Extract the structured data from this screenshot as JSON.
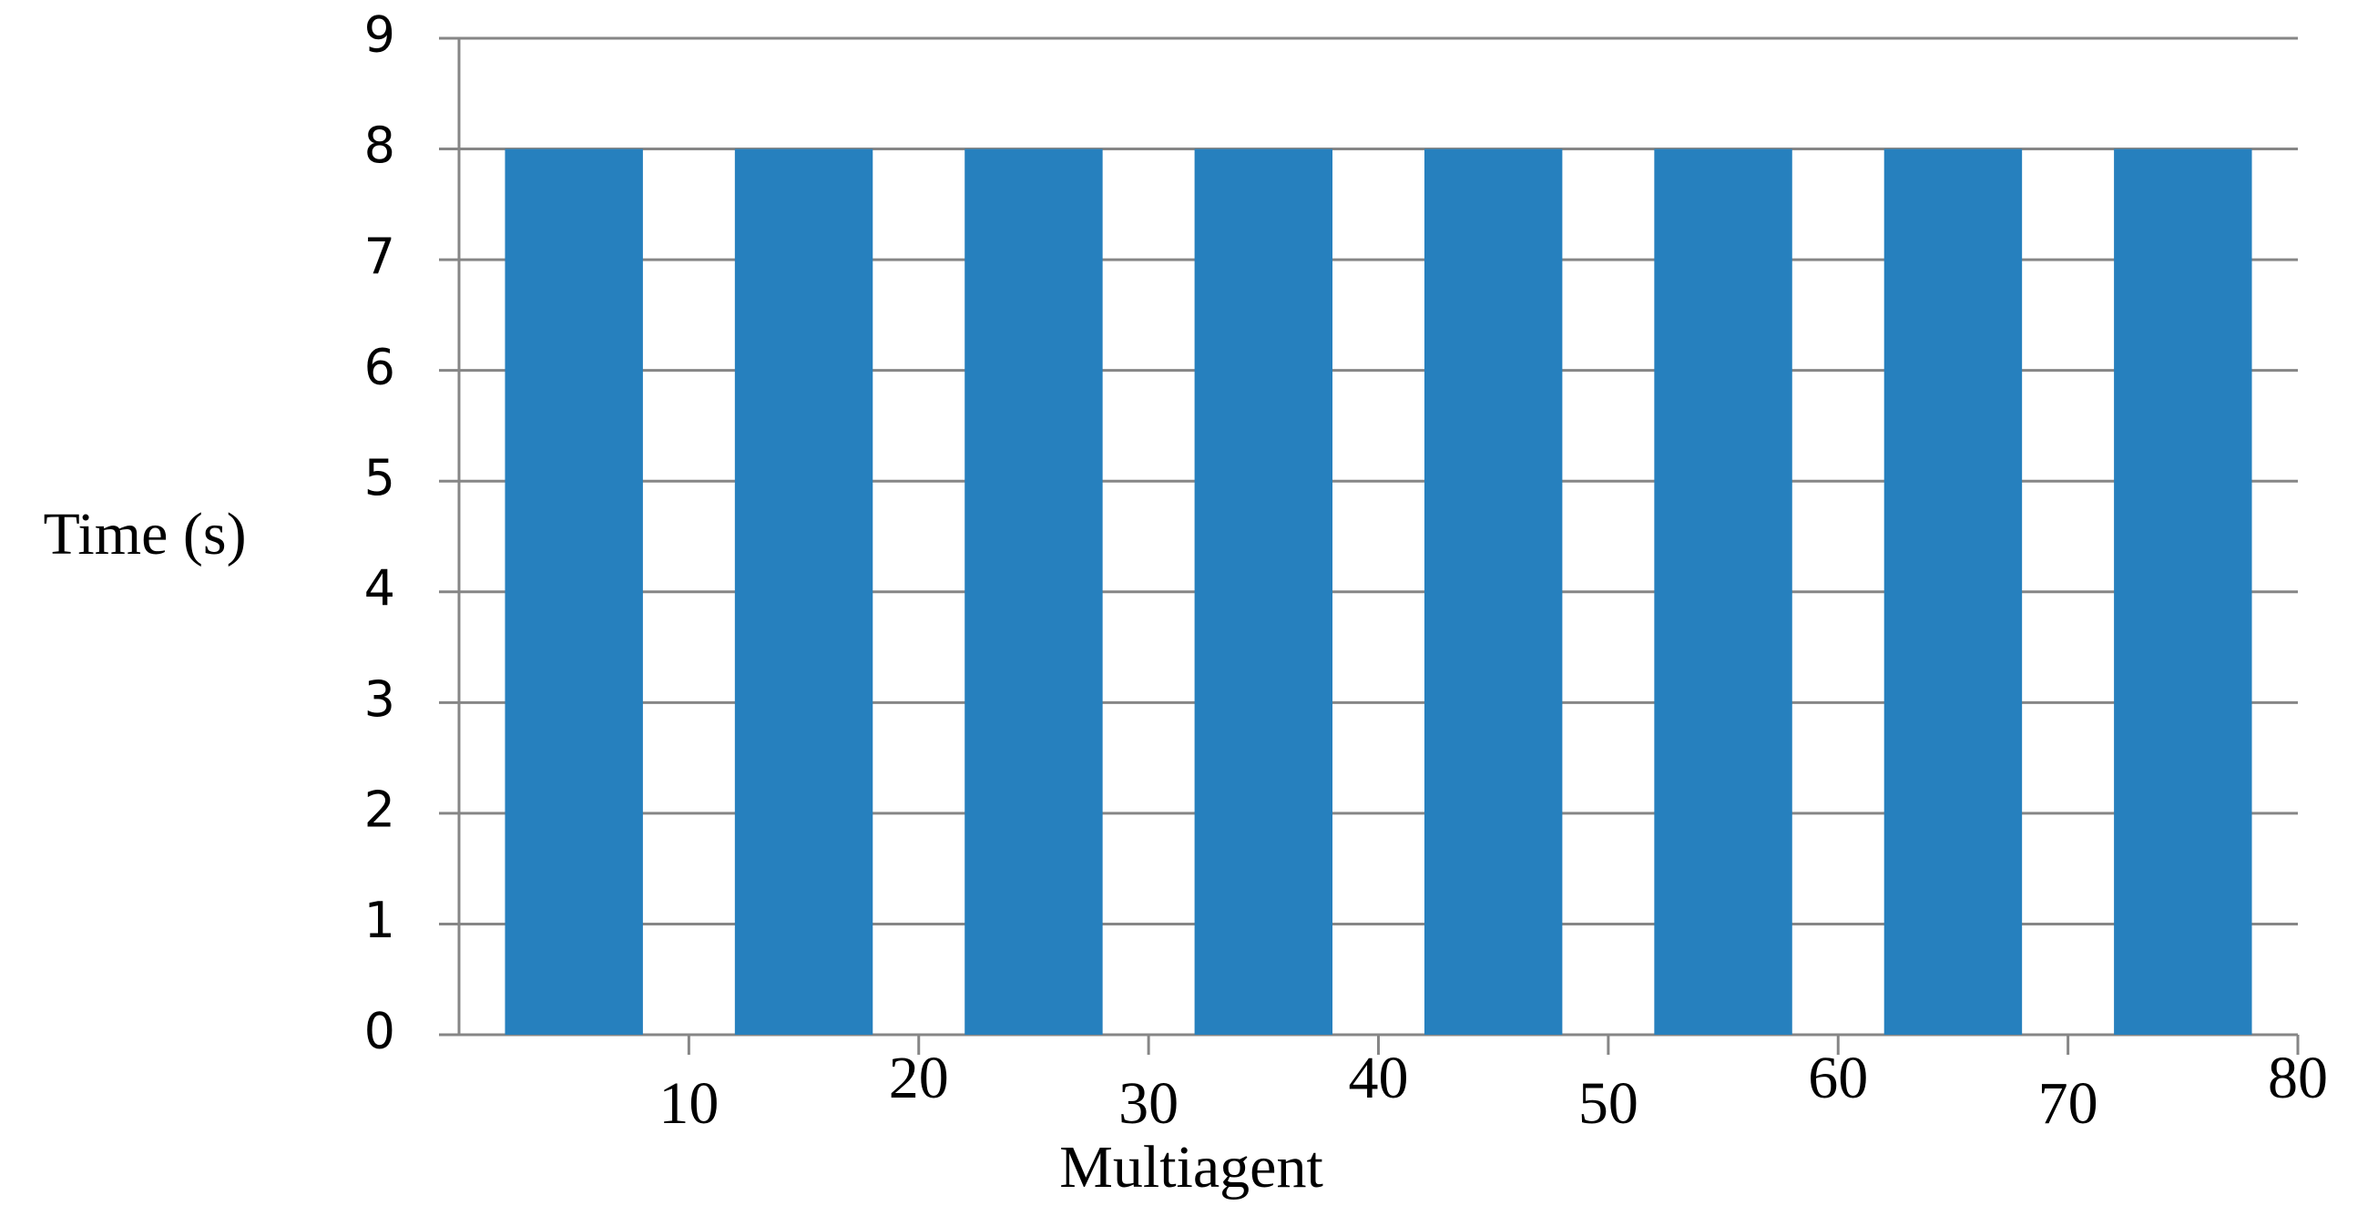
{
  "chart_data": {
    "type": "bar",
    "x_label": "Multiagent",
    "y_label": "Time (s)",
    "x": [
      5,
      15,
      25,
      35,
      45,
      55,
      65,
      75
    ],
    "values": [
      8,
      8,
      8,
      8,
      8,
      8,
      8,
      8
    ],
    "color": "#2680be",
    "xlim": [
      0,
      80
    ],
    "xticks": [
      10,
      20,
      30,
      40,
      50,
      60,
      70,
      80
    ],
    "ylim": [
      0,
      9
    ],
    "yticks": [
      0,
      1,
      2,
      3,
      4,
      5,
      6,
      7,
      8,
      9
    ],
    "grid": true
  }
}
